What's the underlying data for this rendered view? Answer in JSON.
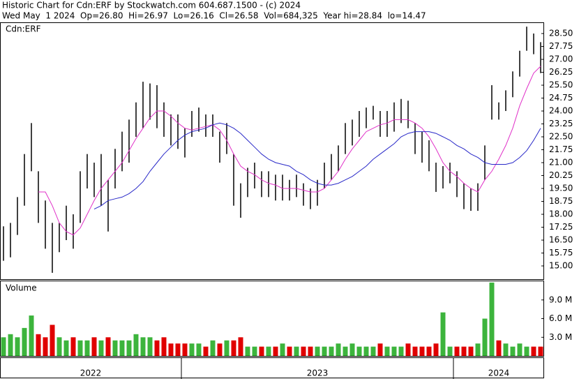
{
  "header": {
    "line1": "Historic Chart for Cdn:ERF by Stockwatch.com 604.687.1500 - (c) 2024",
    "line2": "Wed May  1 2024  Op=26.80  Hi=26.97  Lo=26.16  Cl=26.58  Vol=684,325  Year hi=28.84  lo=14.47"
  },
  "chart_data": {
    "type": "ohlc",
    "symbol": "Cdn:ERF",
    "volume_title": "Volume",
    "colors": {
      "bar": "#000000",
      "ma_fast": "#e030c8",
      "ma_slow": "#2828c8",
      "vol_up": "#3cb43c",
      "vol_down": "#e00000"
    },
    "ylim": [
      14.23,
      29.11
    ],
    "yticks": [
      {
        "value": 15,
        "label": "15.00"
      },
      {
        "value": 15.75,
        "label": "15.75"
      },
      {
        "value": 16.5,
        "label": "16.50"
      },
      {
        "value": 17.25,
        "label": "17.25"
      },
      {
        "value": 18,
        "label": "18.00"
      },
      {
        "value": 18.75,
        "label": "18.75"
      },
      {
        "value": 19.5,
        "label": "19.50"
      },
      {
        "value": 20.25,
        "label": "20.25"
      },
      {
        "value": 21,
        "label": "21.00"
      },
      {
        "value": 21.75,
        "label": "21.75"
      },
      {
        "value": 22.5,
        "label": "22.50"
      },
      {
        "value": 23.25,
        "label": "23.25"
      },
      {
        "value": 24,
        "label": "24.00"
      },
      {
        "value": 24.75,
        "label": "24.75"
      },
      {
        "value": 25.5,
        "label": "25.50"
      },
      {
        "value": 26.25,
        "label": "26.25"
      },
      {
        "value": 27,
        "label": "27.00"
      },
      {
        "value": 27.75,
        "label": "27.75"
      },
      {
        "value": 28.5,
        "label": "28.50"
      }
    ],
    "vlim": [
      0,
      12
    ],
    "vticks": [
      {
        "value": 3,
        "label": "3.0 M"
      },
      {
        "value": 6,
        "label": "6.0 M"
      },
      {
        "value": 9,
        "label": "9.0 M"
      }
    ],
    "periods": [
      {
        "label": "2022",
        "high": [
          17.3,
          17.5,
          19.0,
          21.5,
          23.3,
          20.5,
          18.8,
          17.5,
          17.5,
          18.5,
          18.0,
          20.5,
          21.5,
          21.0,
          21.5,
          20.0,
          21.8,
          22.8,
          23.5,
          24.5,
          25.7,
          25.6,
          25.5,
          24.5,
          23.8,
          23.8
        ],
        "low": [
          15.3,
          15.5,
          16.8,
          18.5,
          20.5,
          17.5,
          16.0,
          14.6,
          15.8,
          16.5,
          16.0,
          17.5,
          19.5,
          19.0,
          18.5,
          17.0,
          19.5,
          20.5,
          21.0,
          22.5,
          23.0,
          23.5,
          23.0,
          22.5,
          22.0,
          21.8
        ],
        "ma_fast": [
          null,
          null,
          null,
          null,
          null,
          19.3,
          19.3,
          18.5,
          17.5,
          17.0,
          16.8,
          17.2,
          18.0,
          18.8,
          19.5,
          20.0,
          20.5,
          21.0,
          21.7,
          22.4,
          23.0,
          23.6,
          24.0,
          24.0,
          23.7,
          23.3
        ],
        "ma_slow": [
          null,
          null,
          null,
          null,
          null,
          null,
          null,
          null,
          null,
          null,
          null,
          null,
          null,
          18.3,
          18.5,
          18.8,
          18.9,
          19.0,
          19.2,
          19.5,
          19.9,
          20.5,
          21.0,
          21.5,
          21.9,
          22.3
        ],
        "volume": [
          3,
          3.5,
          3,
          4.5,
          6.5,
          3.5,
          3,
          5,
          3,
          2.5,
          3,
          2.5,
          2.5,
          3,
          2.5,
          3,
          2.5,
          2.5,
          2.5,
          3.5,
          3,
          3,
          2.5,
          3,
          2,
          2
        ]
      },
      {
        "label": "2023",
        "high": [
          23.0,
          24.0,
          24.2,
          23.8,
          23.8,
          22.8,
          23.3,
          21.5,
          19.8,
          20.7,
          21.0,
          20.5,
          20.5,
          20.3,
          20.3,
          20.0,
          20.3,
          19.8,
          19.5,
          20.0,
          21.0,
          21.5,
          22.0,
          23.3,
          23.5,
          24.0,
          24.2,
          24.3,
          24.0,
          24.0,
          24.5,
          24.7,
          24.6,
          23.3,
          22.8,
          22.3,
          21.0,
          20.8,
          21.0
        ],
        "low": [
          21.3,
          22.5,
          22.8,
          22.5,
          22.5,
          21.0,
          21.5,
          18.5,
          17.8,
          19.0,
          19.5,
          19.0,
          19.0,
          18.8,
          18.8,
          18.8,
          19.0,
          18.5,
          18.3,
          18.5,
          19.5,
          20.0,
          20.5,
          21.5,
          22.0,
          22.5,
          23.0,
          23.5,
          22.5,
          22.5,
          22.8,
          23.3,
          23.0,
          21.5,
          21.0,
          20.5,
          19.3,
          19.5,
          19.8
        ],
        "ma_fast": [
          23.0,
          22.9,
          23.0,
          23.1,
          23.2,
          22.9,
          22.3,
          21.5,
          20.8,
          20.5,
          20.3,
          20.0,
          19.8,
          19.7,
          19.5,
          19.5,
          19.5,
          19.4,
          19.3,
          19.3,
          19.5,
          20.0,
          20.5,
          21.2,
          21.8,
          22.3,
          22.8,
          23.0,
          23.2,
          23.3,
          23.5,
          23.5,
          23.5,
          23.3,
          23.0,
          22.5,
          21.8,
          21.0,
          20.5
        ],
        "ma_slow": [
          22.6,
          22.8,
          22.9,
          23.0,
          23.2,
          23.3,
          23.2,
          23.0,
          22.7,
          22.3,
          21.9,
          21.5,
          21.2,
          21.0,
          20.9,
          20.8,
          20.5,
          20.3,
          20.0,
          19.8,
          19.7,
          19.7,
          19.8,
          20.0,
          20.2,
          20.5,
          20.8,
          21.2,
          21.5,
          21.8,
          22.1,
          22.5,
          22.7,
          22.8,
          22.8,
          22.8,
          22.7,
          22.5,
          22.3
        ],
        "volume": [
          2,
          2,
          2,
          1.5,
          2.5,
          2,
          2.5,
          2.5,
          3,
          1.5,
          1.5,
          1.5,
          1.5,
          1.5,
          2,
          1.5,
          1.5,
          1.5,
          1.5,
          1.5,
          1.5,
          1.5,
          2,
          1.5,
          2,
          1.5,
          1.5,
          1.5,
          2,
          1.5,
          1.5,
          1.5,
          2,
          1.5,
          1.5,
          1.5,
          2,
          7,
          1.5
        ]
      },
      {
        "label": "2024",
        "high": [
          20.5,
          19.8,
          19.5,
          19.8,
          22.0,
          25.5,
          24.5,
          25.2,
          26.3,
          27.5,
          28.9,
          28.5,
          28.0
        ],
        "low": [
          19.0,
          18.3,
          18.2,
          18.2,
          20.0,
          23.5,
          23.5,
          24.0,
          24.8,
          26.0,
          27.5,
          27.3,
          26.2
        ],
        "ma_fast": [
          20.2,
          19.8,
          19.5,
          19.3,
          20.0,
          20.5,
          21.2,
          22.0,
          23.0,
          24.3,
          25.3,
          26.2,
          26.6
        ],
        "ma_slow": [
          22.0,
          21.8,
          21.5,
          21.3,
          21.0,
          20.9,
          20.9,
          20.9,
          21.0,
          21.3,
          21.7,
          22.3,
          23.0
        ],
        "volume": [
          1.5,
          1.5,
          1.5,
          2,
          6,
          11.8,
          2.5,
          2,
          1.5,
          2,
          1.5,
          1.5,
          1.5
        ]
      }
    ]
  }
}
